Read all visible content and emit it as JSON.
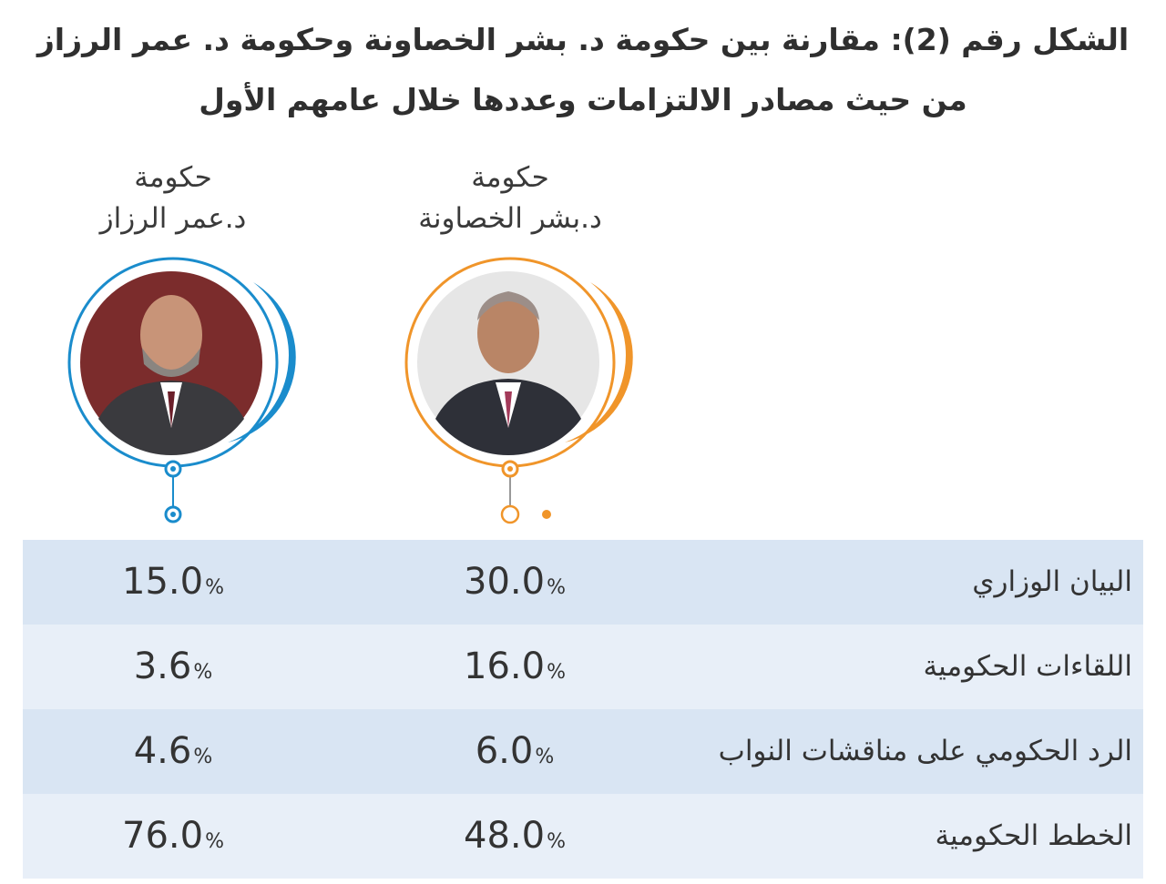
{
  "title": {
    "line1": "الشكل رقم (2): مقارنة بين حكومة د. بشر الخصاونة وحكومة د. عمر الرزاز",
    "line2": "من حيث مصادر الالتزامات وعددها خلال عامهم الأول"
  },
  "governments": {
    "khasawneh": {
      "line1": "حكومة",
      "line2": "د.بشر الخصاونة",
      "color": "#f0952a"
    },
    "razzaz": {
      "line1": "حكومة",
      "line2": "د.عمر الرزاز",
      "color": "#1a8ccc"
    }
  },
  "percent_sign": "%",
  "chart_data": {
    "type": "table",
    "columns": [
      "حكومة د.بشر الخصاونة",
      "حكومة د.عمر الرزاز"
    ],
    "rows": [
      {
        "label": "البيان الوزاري",
        "khasawneh": "30.0",
        "razzaz": "15.0"
      },
      {
        "label": "اللقاءات الحكومية",
        "khasawneh": "16.0",
        "razzaz": "3.6"
      },
      {
        "label": "الرد الحكومي على مناقشات النواب",
        "khasawneh": "6.0",
        "razzaz": "4.6"
      },
      {
        "label": "الخطط الحكومية",
        "khasawneh": "48.0",
        "razzaz": "76.0"
      }
    ]
  },
  "colors": {
    "row_shade_a": "#d9e5f3",
    "row_shade_b": "#e8eff8",
    "khasawneh_accent": "#f0952a",
    "razzaz_accent": "#1a8ccc"
  }
}
